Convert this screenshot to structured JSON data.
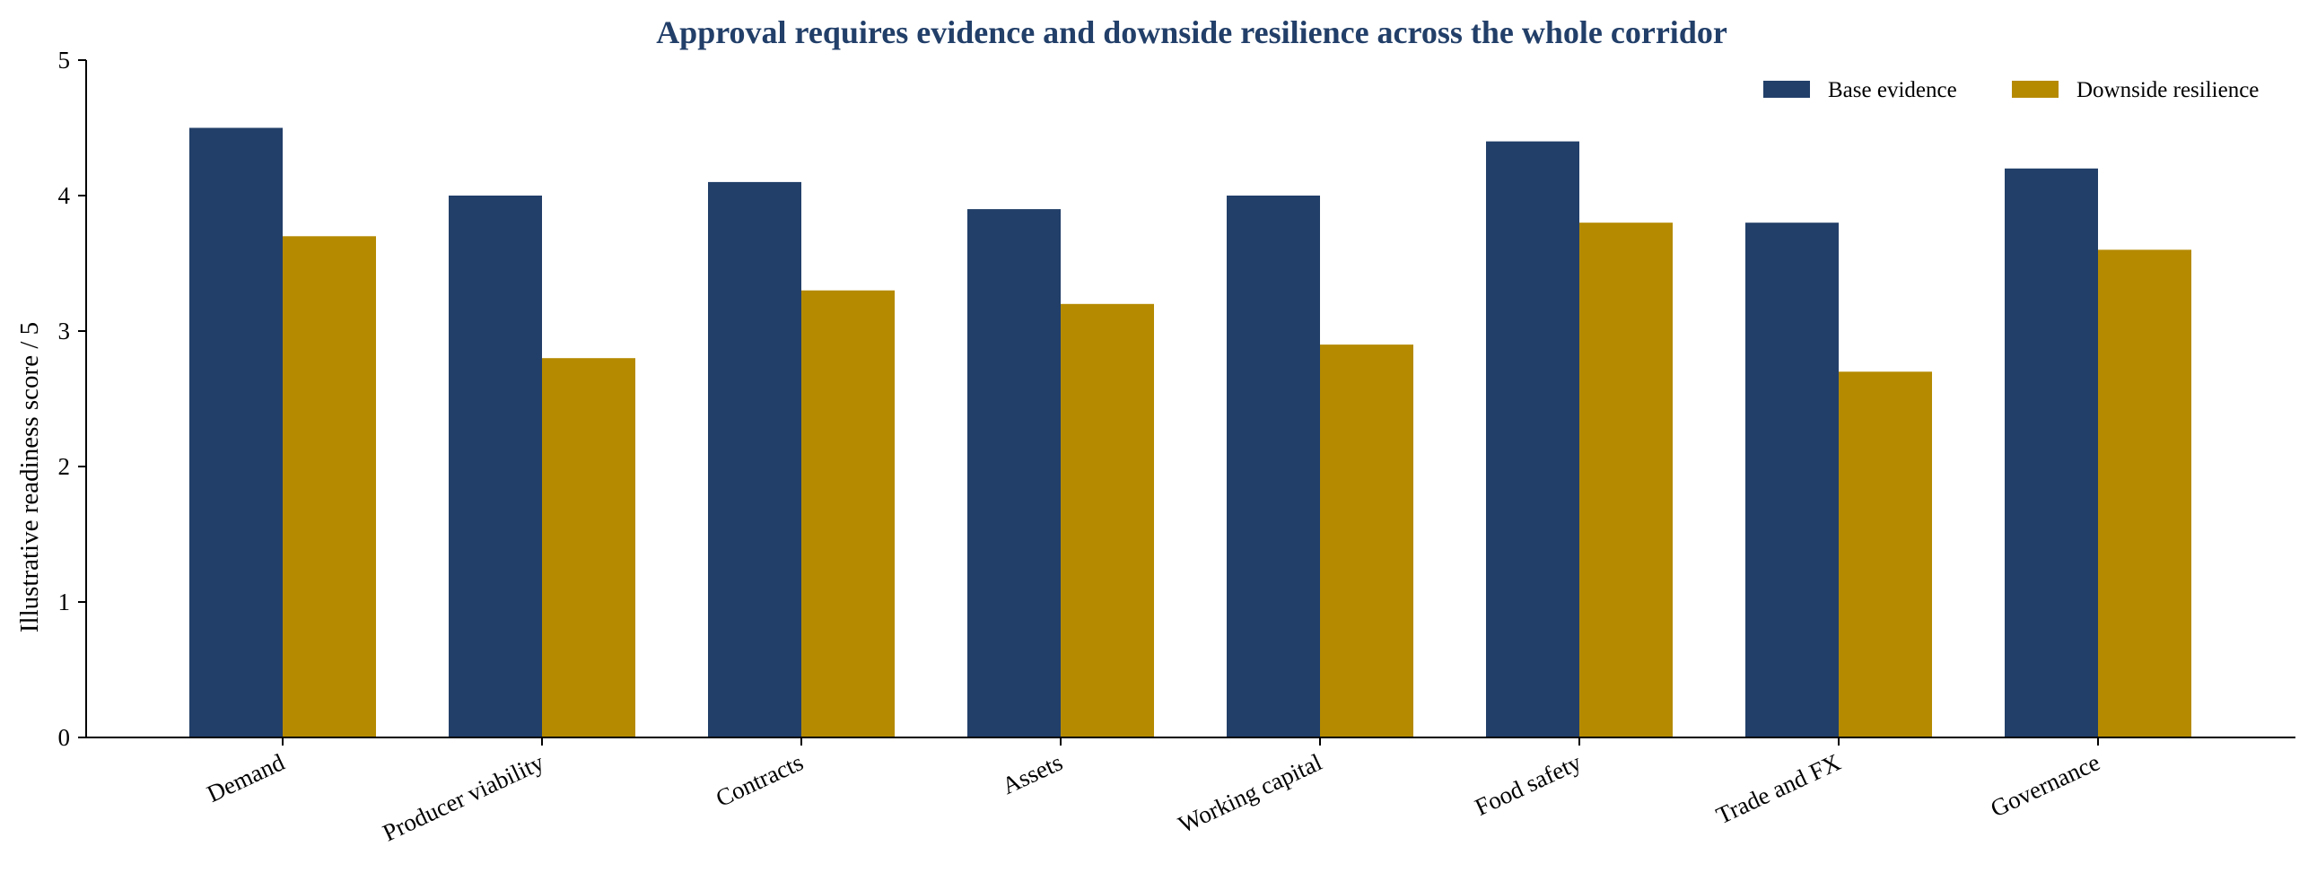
{
  "chart_data": {
    "type": "bar",
    "title": "Approval requires evidence and downside resilience across the whole corridor",
    "xlabel": "",
    "ylabel": "Illustrative readiness score / 5",
    "ylim": [
      0,
      5
    ],
    "yticks": [
      "0",
      "1",
      "2",
      "3",
      "4",
      "5"
    ],
    "categories": [
      "Demand",
      "Producer viability",
      "Contracts",
      "Assets",
      "Working capital",
      "Food safety",
      "Trade and FX",
      "Governance"
    ],
    "series": [
      {
        "name": "Base evidence",
        "color": "#223f69",
        "values": [
          4.5,
          4.0,
          4.1,
          3.9,
          4.0,
          4.4,
          3.8,
          4.2
        ]
      },
      {
        "name": "Downside resilience",
        "color": "#b58a00",
        "values": [
          3.7,
          2.8,
          3.3,
          3.2,
          2.9,
          3.8,
          2.7,
          3.6
        ]
      }
    ],
    "grid": false,
    "legend_position": "top-right",
    "title_color": "#223f69"
  }
}
